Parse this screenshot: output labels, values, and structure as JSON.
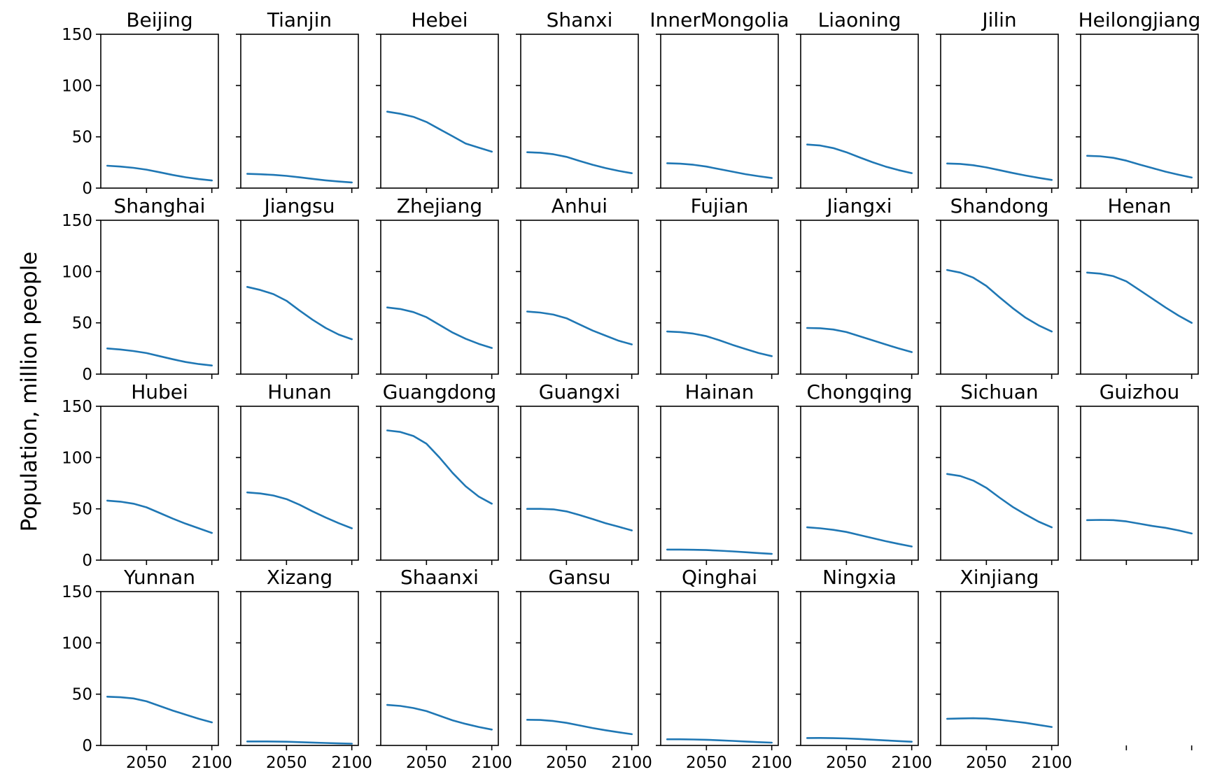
{
  "chart_data": {
    "type": "line",
    "layout": "small-multiples",
    "ylabel": "Population, million people",
    "xlabel": "",
    "xlim": [
      2015,
      2105
    ],
    "ylim": [
      0,
      150
    ],
    "x_ticks": [
      2050,
      2100
    ],
    "y_ticks": [
      0,
      50,
      100,
      150
    ],
    "grid": false,
    "line_color": "#1f77b4",
    "x": [
      2020,
      2030,
      2040,
      2050,
      2060,
      2070,
      2080,
      2090,
      2100
    ],
    "panels": [
      {
        "title": "Beijing",
        "values": [
          21.8,
          21.0,
          19.8,
          18.0,
          15.5,
          12.8,
          10.6,
          8.8,
          7.4
        ]
      },
      {
        "title": "Tianjin",
        "values": [
          13.9,
          13.5,
          12.9,
          11.9,
          10.5,
          9.0,
          7.6,
          6.4,
          5.5
        ]
      },
      {
        "title": "Hebei",
        "values": [
          74.5,
          72.5,
          69.5,
          64.5,
          57.5,
          50.5,
          43.5,
          39.5,
          35.5
        ]
      },
      {
        "title": "Shanxi",
        "values": [
          35.0,
          34.5,
          33.0,
          30.5,
          26.5,
          22.8,
          19.5,
          16.8,
          14.5
        ]
      },
      {
        "title": "InnerMongolia",
        "values": [
          24.3,
          23.8,
          22.8,
          21.0,
          18.5,
          16.0,
          13.6,
          11.6,
          9.8
        ]
      },
      {
        "title": "Liaoning",
        "values": [
          42.5,
          41.5,
          39.0,
          35.0,
          30.0,
          25.2,
          21.0,
          17.5,
          14.6
        ]
      },
      {
        "title": "Jilin",
        "values": [
          24.0,
          23.6,
          22.3,
          20.2,
          17.5,
          14.8,
          12.3,
          10.0,
          8.0
        ]
      },
      {
        "title": "Heilongjiang",
        "values": [
          31.5,
          31.0,
          29.5,
          26.8,
          23.0,
          19.5,
          16.0,
          13.0,
          10.3
        ]
      },
      {
        "title": "Shanghai",
        "values": [
          25.0,
          24.0,
          22.5,
          20.5,
          17.5,
          14.5,
          11.8,
          9.8,
          8.4
        ]
      },
      {
        "title": "Jiangsu",
        "values": [
          85.0,
          82.0,
          78.0,
          71.5,
          62.0,
          53.0,
          45.0,
          38.5,
          34.0
        ]
      },
      {
        "title": "Zhejiang",
        "values": [
          65.0,
          63.5,
          60.5,
          55.5,
          48.0,
          40.5,
          34.5,
          29.5,
          25.5
        ]
      },
      {
        "title": "Anhui",
        "values": [
          61.0,
          60.0,
          58.0,
          54.5,
          48.5,
          42.5,
          37.5,
          32.5,
          29.0
        ]
      },
      {
        "title": "Fujian",
        "values": [
          41.5,
          41.0,
          39.5,
          37.0,
          33.0,
          28.5,
          24.5,
          20.5,
          17.5
        ]
      },
      {
        "title": "Jiangxi",
        "values": [
          45.0,
          44.7,
          43.5,
          41.0,
          37.0,
          33.0,
          29.0,
          25.0,
          21.5
        ]
      },
      {
        "title": "Shandong",
        "values": [
          101.5,
          99.0,
          94.0,
          86.0,
          75.0,
          64.5,
          55.0,
          47.5,
          41.5
        ]
      },
      {
        "title": "Henan",
        "values": [
          99.0,
          98.0,
          95.5,
          90.5,
          82.0,
          73.5,
          65.0,
          57.0,
          50.0
        ]
      },
      {
        "title": "Hubei",
        "values": [
          58.0,
          57.0,
          55.0,
          51.5,
          46.0,
          40.5,
          35.5,
          31.0,
          26.5
        ]
      },
      {
        "title": "Hunan",
        "values": [
          66.0,
          65.0,
          63.0,
          59.5,
          54.0,
          47.5,
          41.5,
          36.0,
          31.0
        ]
      },
      {
        "title": "Guangdong",
        "values": [
          126.5,
          125.0,
          121.0,
          113.5,
          100.0,
          85.0,
          72.0,
          62.0,
          55.0
        ]
      },
      {
        "title": "Guangxi",
        "values": [
          50.0,
          50.0,
          49.5,
          47.5,
          44.0,
          40.0,
          36.0,
          32.5,
          29.0
        ]
      },
      {
        "title": "Hainan",
        "values": [
          10.3,
          10.3,
          10.1,
          9.8,
          9.2,
          8.5,
          7.7,
          6.9,
          6.1
        ]
      },
      {
        "title": "Chongqing",
        "values": [
          32.0,
          31.0,
          29.5,
          27.5,
          24.5,
          21.5,
          18.5,
          15.8,
          13.3
        ]
      },
      {
        "title": "Sichuan",
        "values": [
          84.0,
          82.0,
          77.5,
          70.5,
          61.0,
          52.0,
          44.5,
          37.5,
          32.0
        ]
      },
      {
        "title": "Guizhou",
        "values": [
          39.0,
          39.2,
          39.0,
          37.8,
          35.5,
          33.3,
          31.5,
          29.0,
          26.0
        ]
      },
      {
        "title": "Yunnan",
        "values": [
          47.5,
          47.0,
          45.8,
          43.0,
          38.5,
          34.0,
          30.0,
          26.0,
          22.5
        ]
      },
      {
        "title": "Xizang",
        "values": [
          3.9,
          3.9,
          3.8,
          3.6,
          3.2,
          2.8,
          2.4,
          2.0,
          1.7
        ]
      },
      {
        "title": "Shaanxi",
        "values": [
          39.5,
          38.5,
          36.5,
          33.5,
          29.0,
          24.5,
          21.0,
          18.0,
          15.5
        ]
      },
      {
        "title": "Gansu",
        "values": [
          25.0,
          24.8,
          23.8,
          22.0,
          19.5,
          17.0,
          14.8,
          12.8,
          11.0
        ]
      },
      {
        "title": "Qinghai",
        "values": [
          6.0,
          6.0,
          5.8,
          5.5,
          5.0,
          4.4,
          3.8,
          3.2,
          2.7
        ]
      },
      {
        "title": "Ningxia",
        "values": [
          7.2,
          7.3,
          7.1,
          6.8,
          6.3,
          5.6,
          4.9,
          4.2,
          3.6
        ]
      },
      {
        "title": "Xinjiang",
        "values": [
          26.0,
          26.3,
          26.5,
          26.2,
          25.0,
          23.5,
          22.0,
          20.0,
          18.0
        ]
      }
    ]
  }
}
